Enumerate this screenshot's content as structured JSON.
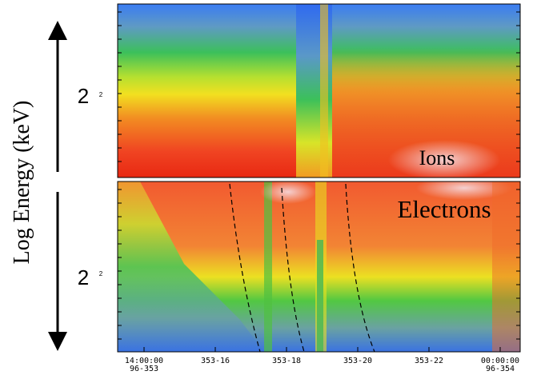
{
  "y_axis_label": "Log Energy (keV)",
  "panels": [
    {
      "label": "Ions",
      "y_tick_label": "2",
      "y_tick_small": "2"
    },
    {
      "label": "Electrons",
      "y_tick_label": "2",
      "y_tick_small": "2"
    }
  ],
  "x_ticks": [
    {
      "time": "14:00:00",
      "date": "96-353"
    },
    {
      "time": "353-16"
    },
    {
      "time": "353-18"
    },
    {
      "time": "353-20"
    },
    {
      "time": "353-22"
    },
    {
      "time": "00:00:00",
      "date": "96-354"
    }
  ]
}
